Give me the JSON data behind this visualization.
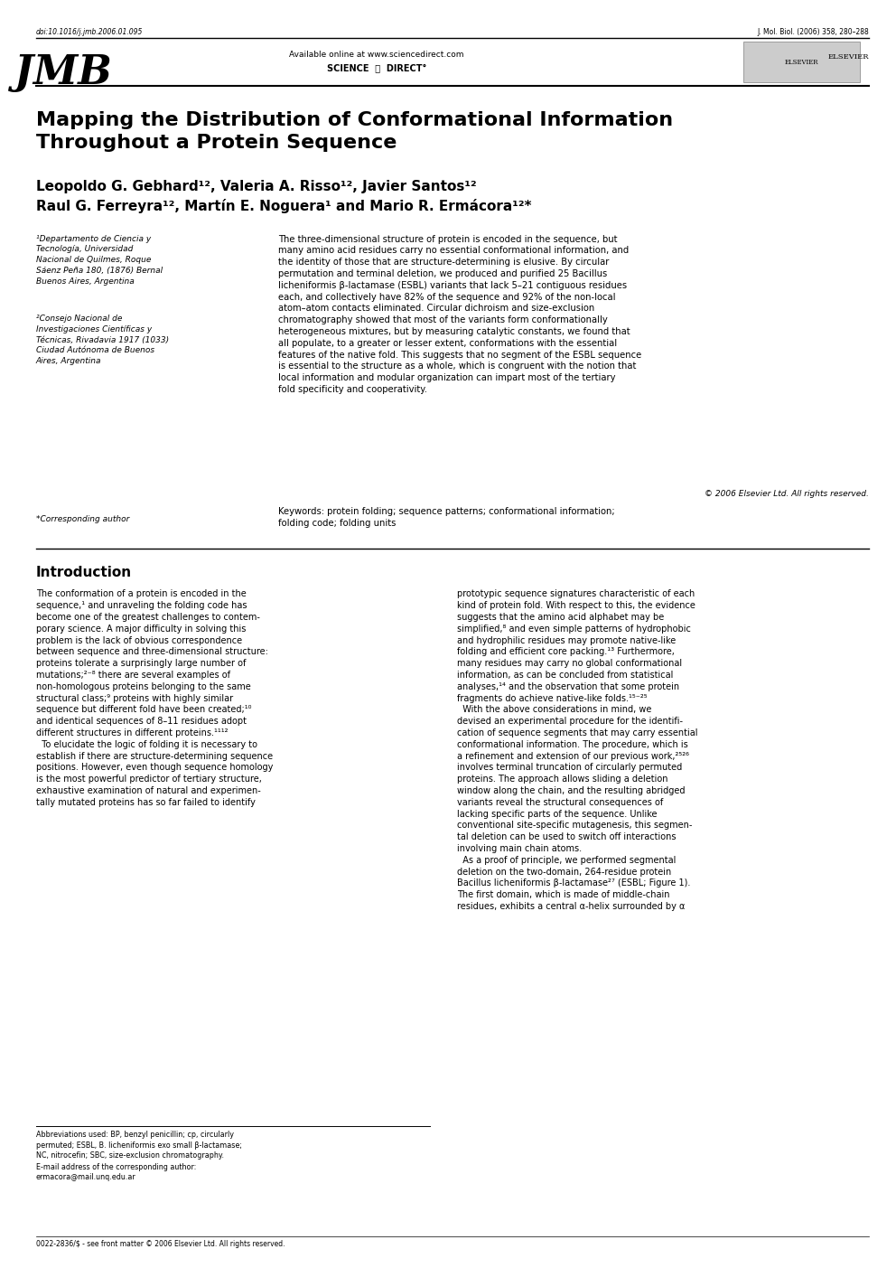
{
  "bg_color": "#ffffff",
  "page_width": 9.92,
  "page_height": 14.03,
  "header": {
    "doi": "doi:10.1016/j.jmb.2006.01.095",
    "journal_ref": "J. Mol. Biol. (2006) 358, 280–288",
    "jmb_text": "JMB",
    "available_online": "Available online at www.sciencedirect.com",
    "science_direct": "SCIENCE @ DIRECT°",
    "elsevier": "ELSEVIER"
  },
  "title": "Mapping the Distribution of Conformational Information\nThroughout a Protein Sequence",
  "authors_line1": "Leopoldo G. Gebhard¹², Valeria A. Risso¹², Javier Santos¹²",
  "authors_line2": "Raul G. Ferreyra¹², Martín E. Noguera¹ and Mario R. Ermácora¹²*",
  "affil1": "¹Departamento de Ciencia y\nTecnología, Universidad\nNacional de Quilmes, Roque\nSáenz Peña 180, (1876) Bernal\nBuenos Aires, Argentina",
  "affil2": "²Consejo Nacional de\nInvestigaciones Científicas y\nTécnicas, Rivadavia 1917 (1033)\nCiudad Autónoma de Buenos\nAires, Argentina",
  "corresponding": "*Corresponding author",
  "abstract": "The three-dimensional structure of protein is encoded in the sequence, but\nmany amino acid residues carry no essential conformational information, and\nthe identity of those that are structure-determining is elusive. By circular\npermutation and terminal deletion, we produced and purified 25 Bacillus\nlicheniformis β-lactamase (ESBL) variants that lack 5–21 contiguous residues\neach, and collectively have 82% of the sequence and 92% of the non-local\natom–atom contacts eliminated. Circular dichroism and size-exclusion\nchromatography showed that most of the variants form conformationally\nheterogeneous mixtures, but by measuring catalytic constants, we found that\nall populate, to a greater or lesser extent, conformations with the essential\nfeatures of the native fold. This suggests that no segment of the ESBL sequence\nis essential to the structure as a whole, which is congruent with the notion that\nlocal information and modular organization can impart most of the tertiary\nfold specificity and cooperativity.",
  "copyright": "© 2006 Elsevier Ltd. All rights reserved.",
  "keywords": "Keywords: protein folding; sequence patterns; conformational information;\nfolding code; folding units",
  "intro_title": "Introduction",
  "intro_col1": "The conformation of a protein is encoded in the\nsequence,¹ and unraveling the folding code has\nbecome one of the greatest challenges to contem-\nporary science. A major difficulty in solving this\nproblem is the lack of obvious correspondence\nbetween sequence and three-dimensional structure:\nproteins tolerate a surprisingly large number of\nmutations;²⁻⁸ there are several examples of\nnon-homologous proteins belonging to the same\nstructural class;⁹ proteins with highly similar\nsequence but different fold have been created;¹⁰\nand identical sequences of 8–11 residues adopt\ndifferent structures in different proteins.¹¹¹²\n  To elucidate the logic of folding it is necessary to\nestablish if there are structure-determining sequence\npositions. However, even though sequence homology\nis the most powerful predictor of tertiary structure,\nexhaustive examination of natural and experimen-\ntally mutated proteins has so far failed to identify",
  "intro_col2": "prototypic sequence signatures characteristic of each\nkind of protein fold. With respect to this, the evidence\nsuggests that the amino acid alphabet may be\nsimplified,⁸ and even simple patterns of hydrophobic\nand hydrophilic residues may promote native-like\nfolding and efficient core packing.¹³ Furthermore,\nmany residues may carry no global conformational\ninformation, as can be concluded from statistical\nanalyses,¹⁴ and the observation that some protein\nfragments do achieve native-like folds.¹⁵⁻²⁵\n  With the above considerations in mind, we\ndevised an experimental procedure for the identifi-\ncation of sequence segments that may carry essential\nconformational information. The procedure, which is\na refinement and extension of our previous work,²⁵²⁶\ninvolves terminal truncation of circularly permuted\nproteins. The approach allows sliding a deletion\nwindow along the chain, and the resulting abridged\nvariants reveal the structural consequences of\nlacking specific parts of the sequence. Unlike\nconventional site-specific mutagenesis, this segmen-\ntal deletion can be used to switch off interactions\ninvolving main chain atoms.\n  As a proof of principle, we performed segmental\ndeletion on the two-domain, 264-residue protein\nBacillus licheniformis β-lactamase²⁷ (ESBL; Figure 1).\nThe first domain, which is made of middle-chain\nresidues, exhibits a central α-helix surrounded by α",
  "footnote1": "Abbreviations used: BP, benzyl penicillin; cp, circularly\npermuted; ESBL, B. licheniformis exo small β-lactamase;\nNC, nitrocefin; SBC, size-exclusion chromatography.",
  "footnote2": "E-mail address of the corresponding author:\nermacora@mail.unq.edu.ar",
  "footer": "0022-2836/$ - see front matter © 2006 Elsevier Ltd. All rights reserved."
}
